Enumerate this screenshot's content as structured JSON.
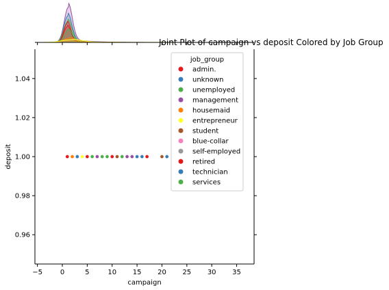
{
  "chart_data": {
    "type": "scatter",
    "title": "Joint Plot of campaign vs deposit Colored by Job Group",
    "xlabel": "campaign",
    "ylabel": "deposit",
    "xlim": [
      -5.5,
      38.5
    ],
    "ylim": [
      0.945,
      1.055
    ],
    "xticks": [
      "−5",
      "0",
      "5",
      "10",
      "15",
      "20",
      "25",
      "30",
      "35"
    ],
    "xtick_values": [
      -5,
      0,
      5,
      10,
      15,
      20,
      25,
      30,
      35
    ],
    "yticks": [
      "0.96",
      "0.98",
      "1.00",
      "1.02",
      "1.04"
    ],
    "ytick_values": [
      0.96,
      0.98,
      1.0,
      1.02,
      1.04
    ],
    "grid": false,
    "legend_title": "job_group",
    "legend_position": "upper-right",
    "series": [
      {
        "name": "admin.",
        "color": "#e41a1c",
        "x": [
          1,
          2,
          3,
          5,
          10,
          17
        ],
        "y": [
          1,
          1,
          1,
          1,
          1,
          1
        ]
      },
      {
        "name": "unknown",
        "color": "#377eb8",
        "x": [
          3,
          4,
          12,
          21
        ],
        "y": [
          1,
          1,
          1,
          1
        ]
      },
      {
        "name": "unemployed",
        "color": "#4daf4a",
        "x": [
          6,
          8,
          9
        ],
        "y": [
          1,
          1,
          1
        ]
      },
      {
        "name": "management",
        "color": "#984ea3",
        "x": [
          7,
          13,
          14
        ],
        "y": [
          1,
          1,
          1
        ]
      },
      {
        "name": "housemaid",
        "color": "#ff7f00",
        "x": [
          2
        ],
        "y": [
          1
        ]
      },
      {
        "name": "entrepreneur",
        "color": "#ffff33",
        "x": [
          4
        ],
        "y": [
          1
        ]
      },
      {
        "name": "student",
        "color": "#a65628",
        "x": [
          11,
          20
        ],
        "y": [
          1,
          1
        ]
      },
      {
        "name": "blue-collar",
        "color": "#f781bf",
        "x": [
          15
        ],
        "y": [
          1
        ]
      },
      {
        "name": "self-employed",
        "color": "#999999",
        "x": [
          16
        ],
        "y": [
          1
        ]
      },
      {
        "name": "retired",
        "color": "#e41a1c",
        "x": [
          10
        ],
        "y": [
          1
        ]
      },
      {
        "name": "technician",
        "color": "#377eb8",
        "x": [
          15,
          16
        ],
        "y": [
          1,
          1
        ]
      },
      {
        "name": "services",
        "color": "#4daf4a",
        "x": [
          12
        ],
        "y": [
          1
        ]
      }
    ],
    "marginal_x": {
      "type": "kde",
      "series": [
        {
          "name": "management",
          "color": "#984ea3",
          "peak": 1.0,
          "center": 1.2,
          "width": 0.8,
          "tail": 10
        },
        {
          "name": "technician",
          "color": "#377eb8",
          "peak": 0.75,
          "center": 1.1,
          "width": 0.8,
          "tail": 9
        },
        {
          "name": "unemployed",
          "color": "#4daf4a",
          "peak": 0.6,
          "center": 1.1,
          "width": 0.8,
          "tail": 8
        },
        {
          "name": "admin.",
          "color": "#e41a1c",
          "peak": 0.55,
          "center": 1.0,
          "width": 0.7,
          "tail": 8
        },
        {
          "name": "retired",
          "color": "#e41a1c",
          "peak": 0.45,
          "center": 1.0,
          "width": 0.7,
          "tail": 7
        },
        {
          "name": "services",
          "color": "#4daf4a",
          "peak": 0.35,
          "center": 1.2,
          "width": 0.8,
          "tail": 7
        },
        {
          "name": "housemaid",
          "color": "#ff7f00",
          "peak": 0.12,
          "center": 1.5,
          "width": 1.2,
          "tail": 14
        },
        {
          "name": "entrepreneur",
          "color": "#ffff33",
          "peak": 0.08,
          "center": 2.0,
          "width": 2.0,
          "tail": 30
        }
      ]
    }
  }
}
